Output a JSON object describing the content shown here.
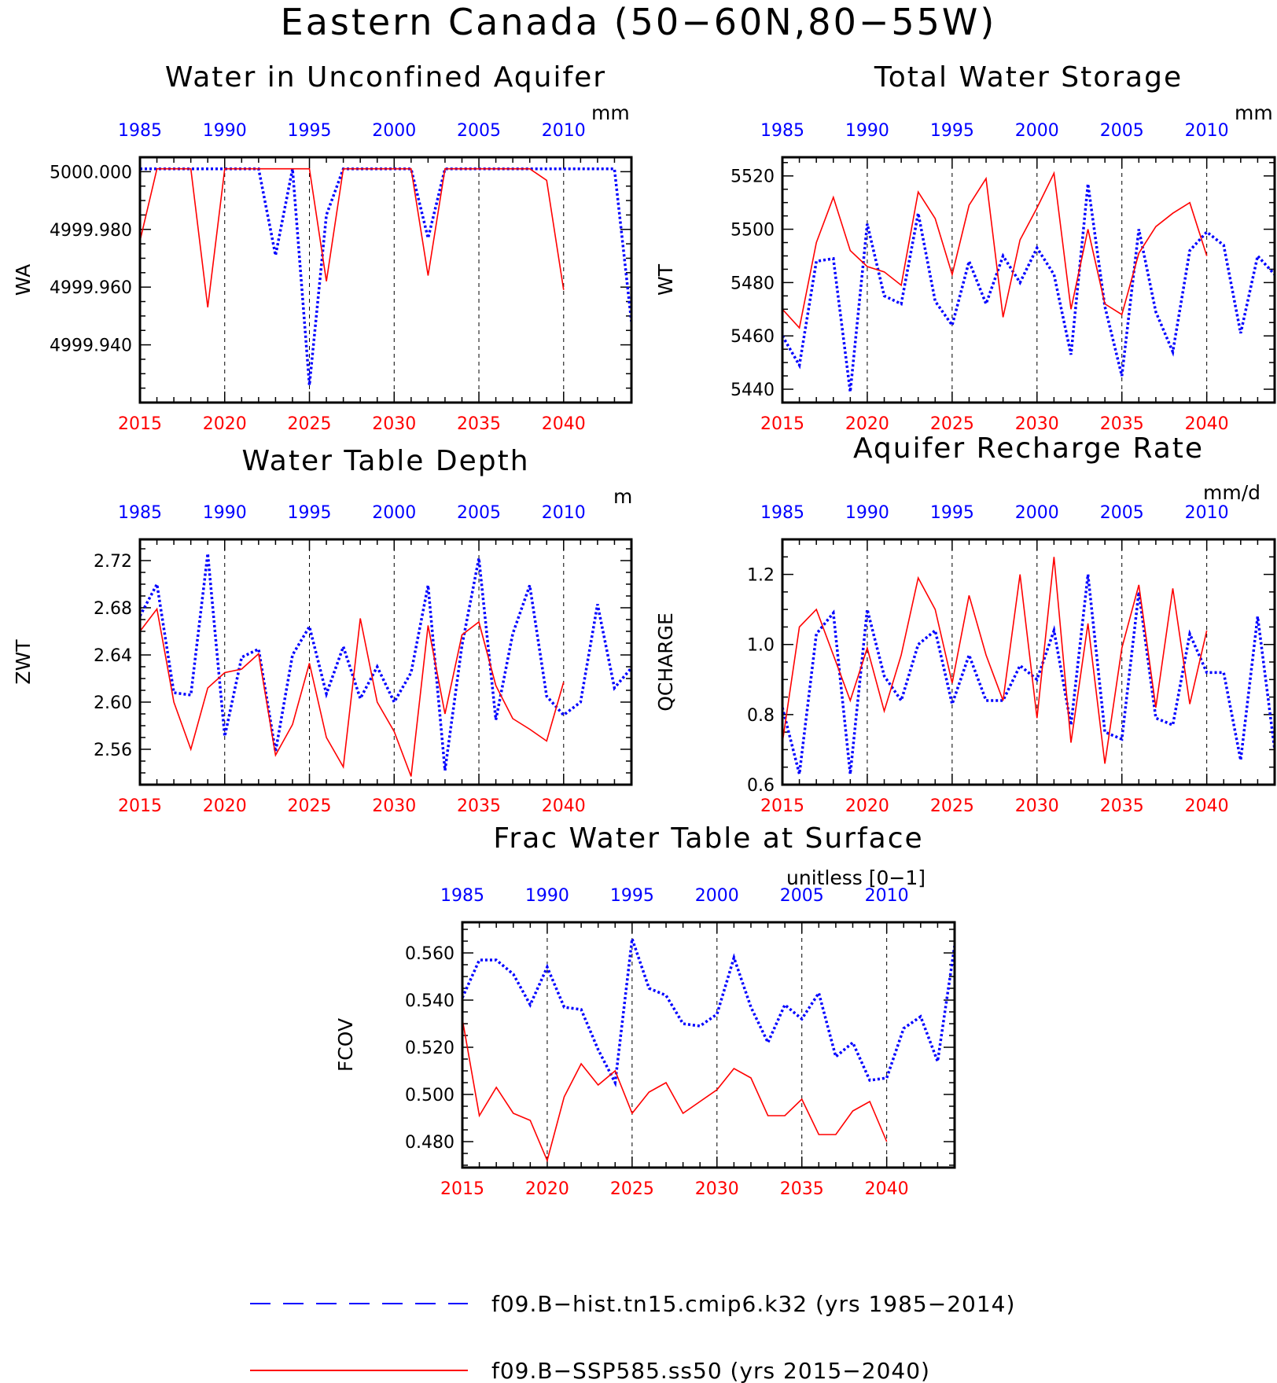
{
  "title": "Eastern Canada (50−60N,80−55W)",
  "colors": {
    "hist": "#0000ff",
    "ssp": "#ff0000"
  },
  "legend": [
    {
      "series": "hist",
      "label": "f09.B−hist.tn15.cmip6.k32 (yrs 1985−2014)"
    },
    {
      "series": "ssp",
      "label": "f09.B−SSP585.ss50 (yrs 2015−2040)"
    }
  ],
  "chart_data": [
    {
      "type": "line",
      "title": "Water in Unconfined Aquifer",
      "units": "mm",
      "ylabel": "WA",
      "ylim": [
        4999.92,
        5000.005
      ],
      "yticks": [
        4999.94,
        4999.96,
        4999.98,
        5000.0
      ],
      "ytick_labels": [
        "4999.940",
        "4999.960",
        "4999.980",
        "5000.000"
      ],
      "xlim_bottom": [
        2015,
        2044
      ],
      "xticks_bottom": [
        2015,
        2020,
        2025,
        2030,
        2035,
        2040
      ],
      "xlim_top": [
        1985,
        2014
      ],
      "xticks_top": [
        1985,
        1990,
        1995,
        2000,
        2005,
        2010
      ],
      "series": [
        {
          "name": "f09.B−hist.tn15.cmip6.k32",
          "key": "hist",
          "style": "dotted",
          "x_start": 1985,
          "values": [
            5000.001,
            5000.001,
            5000.001,
            5000.001,
            5000.001,
            5000.001,
            5000.001,
            5000.001,
            4999.971,
            5000.001,
            4999.926,
            4999.985,
            5000.001,
            5000.001,
            5000.001,
            5000.001,
            5000.001,
            4999.977,
            5000.001,
            5000.001,
            5000.001,
            5000.001,
            5000.001,
            5000.001,
            5000.001,
            5000.001,
            5000.001,
            5000.001,
            5000.001,
            4999.948
          ]
        },
        {
          "name": "f09.B−SSP585.ss50",
          "key": "ssp",
          "style": "solid",
          "x_start": 2015,
          "values": [
            4999.976,
            5000.001,
            5000.001,
            5000.001,
            4999.953,
            5000.001,
            5000.001,
            5000.001,
            5000.001,
            5000.001,
            5000.001,
            4999.962,
            5000.001,
            5000.001,
            5000.001,
            5000.001,
            5000.001,
            4999.964,
            5000.001,
            5000.001,
            5000.001,
            5000.001,
            5000.001,
            5000.001,
            4999.997,
            4999.959
          ]
        }
      ]
    },
    {
      "type": "line",
      "title": "Total Water Storage",
      "units": "mm",
      "ylabel": "WT",
      "ylim": [
        5435,
        5527
      ],
      "yticks": [
        5440,
        5460,
        5480,
        5500,
        5520
      ],
      "ytick_labels": [
        "5440",
        "5460",
        "5480",
        "5500",
        "5520"
      ],
      "xlim_bottom": [
        2015,
        2044
      ],
      "xticks_bottom": [
        2015,
        2020,
        2025,
        2030,
        2035,
        2040
      ],
      "xlim_top": [
        1985,
        2014
      ],
      "xticks_top": [
        1985,
        1990,
        1995,
        2000,
        2005,
        2010
      ],
      "series": [
        {
          "name": "f09.B−hist.tn15.cmip6.k32",
          "key": "hist",
          "style": "dotted",
          "x_start": 1985,
          "values": [
            5460,
            5449,
            5488,
            5489,
            5439,
            5502,
            5475,
            5472,
            5506,
            5473,
            5464,
            5488,
            5472,
            5490,
            5480,
            5493,
            5483,
            5453,
            5517,
            5471,
            5445,
            5500,
            5469,
            5454,
            5492,
            5499,
            5494,
            5461,
            5490,
            5483
          ]
        },
        {
          "name": "f09.B−SSP585.ss50",
          "key": "ssp",
          "style": "solid",
          "x_start": 2015,
          "values": [
            5470,
            5463,
            5495,
            5512,
            5492,
            5486,
            5484,
            5479,
            5514,
            5504,
            5483,
            5509,
            5519,
            5467,
            5496,
            5508,
            5521,
            5470,
            5500,
            5472,
            5468,
            5491,
            5501,
            5506,
            5510,
            5490
          ]
        }
      ]
    },
    {
      "type": "line",
      "title": "Water Table Depth",
      "units": "m",
      "ylabel": "ZWT",
      "ylim": [
        2.53,
        2.738
      ],
      "yticks": [
        2.56,
        2.6,
        2.64,
        2.68,
        2.72
      ],
      "ytick_labels": [
        "2.56",
        "2.60",
        "2.64",
        "2.68",
        "2.72"
      ],
      "xlim_bottom": [
        2015,
        2044
      ],
      "xticks_bottom": [
        2015,
        2020,
        2025,
        2030,
        2035,
        2040
      ],
      "xlim_top": [
        1985,
        2014
      ],
      "xticks_top": [
        1985,
        1990,
        1995,
        2000,
        2005,
        2010
      ],
      "series": [
        {
          "name": "f09.B−hist.tn15.cmip6.k32",
          "key": "hist",
          "style": "dotted",
          "x_start": 1985,
          "values": [
            2.673,
            2.7,
            2.608,
            2.606,
            2.726,
            2.571,
            2.638,
            2.645,
            2.558,
            2.64,
            2.664,
            2.607,
            2.647,
            2.603,
            2.63,
            2.6,
            2.625,
            2.699,
            2.542,
            2.648,
            2.722,
            2.585,
            2.658,
            2.699,
            2.605,
            2.589,
            2.6,
            2.683,
            2.612,
            2.629
          ]
        },
        {
          "name": "f09.B−SSP585.ss50",
          "key": "ssp",
          "style": "solid",
          "x_start": 2015,
          "values": [
            2.66,
            2.679,
            2.6,
            2.56,
            2.612,
            2.625,
            2.628,
            2.641,
            2.555,
            2.581,
            2.633,
            2.57,
            2.545,
            2.671,
            2.6,
            2.575,
            2.537,
            2.665,
            2.59,
            2.657,
            2.668,
            2.614,
            2.586,
            2.577,
            2.567,
            2.617
          ]
        }
      ]
    },
    {
      "type": "line",
      "title": "Aquifer Recharge Rate",
      "units": "mm/d",
      "ylabel": "QCHARGE",
      "ylim": [
        0.6,
        1.3
      ],
      "yticks": [
        0.6,
        0.8,
        1.0,
        1.2
      ],
      "ytick_labels": [
        "0.6",
        "0.8",
        "1.0",
        "1.2"
      ],
      "xlim_bottom": [
        2015,
        2044
      ],
      "xticks_bottom": [
        2015,
        2020,
        2025,
        2030,
        2035,
        2040
      ],
      "xlim_top": [
        1985,
        2014
      ],
      "xticks_top": [
        1985,
        1990,
        1995,
        2000,
        2005,
        2010
      ],
      "series": [
        {
          "name": "f09.B−hist.tn15.cmip6.k32",
          "key": "hist",
          "style": "dotted",
          "x_start": 1985,
          "values": [
            0.82,
            0.63,
            1.03,
            1.09,
            0.63,
            1.1,
            0.91,
            0.84,
            1.0,
            1.04,
            0.83,
            0.97,
            0.84,
            0.84,
            0.94,
            0.9,
            1.04,
            0.77,
            1.2,
            0.75,
            0.73,
            1.15,
            0.79,
            0.77,
            1.03,
            0.92,
            0.92,
            0.67,
            1.08,
            0.7
          ]
        },
        {
          "name": "f09.B−SSP585.ss50",
          "key": "ssp",
          "style": "solid",
          "x_start": 2015,
          "values": [
            0.72,
            1.05,
            1.1,
            0.97,
            0.84,
            0.99,
            0.81,
            0.97,
            1.19,
            1.1,
            0.89,
            1.14,
            0.97,
            0.84,
            1.2,
            0.79,
            1.25,
            0.72,
            1.06,
            0.66,
            0.99,
            1.17,
            0.82,
            1.16,
            0.83,
            1.04
          ]
        }
      ]
    },
    {
      "type": "line",
      "title": "Frac Water Table at Surface",
      "units": "unitless [0−1]",
      "ylabel": "FCOV",
      "ylim": [
        0.469,
        0.573
      ],
      "yticks": [
        0.48,
        0.5,
        0.52,
        0.54,
        0.56
      ],
      "ytick_labels": [
        "0.480",
        "0.500",
        "0.520",
        "0.540",
        "0.560"
      ],
      "xlim_bottom": [
        2015,
        2044
      ],
      "xticks_bottom": [
        2015,
        2020,
        2025,
        2030,
        2035,
        2040
      ],
      "xlim_top": [
        1985,
        2014
      ],
      "xticks_top": [
        1985,
        1990,
        1995,
        2000,
        2005,
        2010
      ],
      "series": [
        {
          "name": "f09.B−hist.tn15.cmip6.k32",
          "key": "hist",
          "style": "dotted",
          "x_start": 1985,
          "values": [
            0.541,
            0.557,
            0.557,
            0.551,
            0.538,
            0.554,
            0.537,
            0.536,
            0.519,
            0.505,
            0.566,
            0.545,
            0.542,
            0.53,
            0.529,
            0.534,
            0.558,
            0.537,
            0.522,
            0.538,
            0.532,
            0.543,
            0.516,
            0.522,
            0.506,
            0.507,
            0.528,
            0.533,
            0.514,
            0.563
          ]
        },
        {
          "name": "f09.B−SSP585.ss50",
          "key": "ssp",
          "style": "solid",
          "x_start": 2015,
          "values": [
            0.532,
            0.491,
            0.503,
            0.492,
            0.489,
            0.472,
            0.499,
            0.513,
            0.504,
            0.51,
            0.492,
            0.501,
            0.505,
            0.492,
            0.497,
            0.502,
            0.511,
            0.507,
            0.491,
            0.491,
            0.498,
            0.483,
            0.483,
            0.493,
            0.497,
            0.48
          ]
        }
      ]
    }
  ]
}
